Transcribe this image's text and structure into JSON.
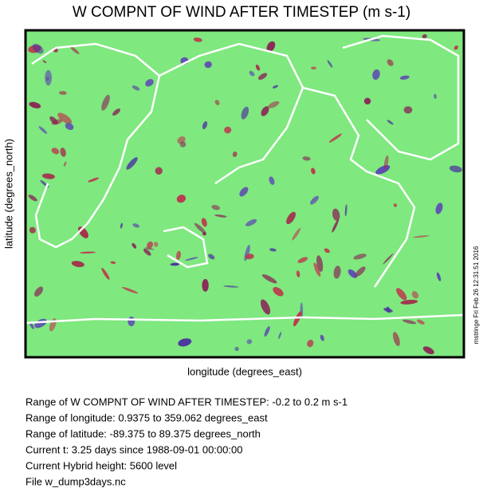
{
  "title": "W COMPNT OF WIND AFTER TIMESTEP (m s-1)",
  "x_label": "longitude (degrees_east)",
  "y_label": "latitude (degrees_north)",
  "stamp": "mstringe Fri Feb 26 12:31:51 2016",
  "info": [
    "Range of W COMPNT OF WIND AFTER TIMESTEP: -0.2 to 0.2 m s-1",
    "Range of longitude: 0.9375 to 359.062 degrees_east",
    "Range of latitude: -89.375 to 89.375 degrees_north",
    "Current t: 3.25 days since 1988-09-01 00:00:00",
    "Current Hybrid height: 5600 level",
    "File w_dump3days.nc"
  ]
}
